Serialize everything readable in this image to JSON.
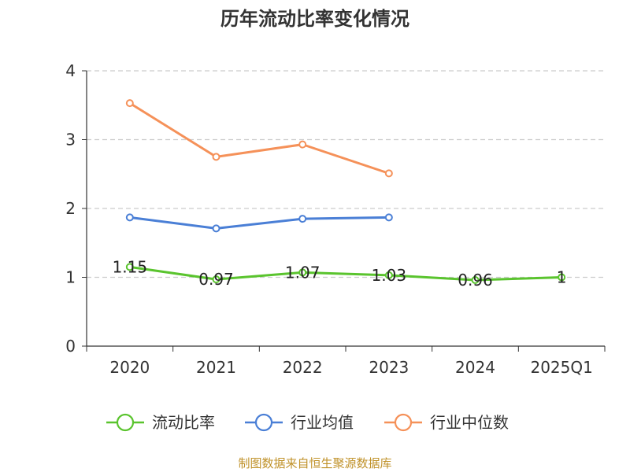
{
  "chart_data": {
    "type": "line",
    "title": "历年流动比率变化情况",
    "categories": [
      "2020",
      "2021",
      "2022",
      "2023",
      "2024",
      "2025Q1"
    ],
    "ylim": [
      0,
      4
    ],
    "yticks": [
      "0",
      "1",
      "2",
      "3",
      "4"
    ],
    "grid": true,
    "series": [
      {
        "name": "流动比率",
        "color": "#5ac42e",
        "values": [
          1.15,
          0.97,
          1.07,
          1.03,
          0.96,
          1
        ],
        "labels": [
          "1.15",
          "0.97",
          "1.07",
          "1.03",
          "0.96",
          "1"
        ]
      },
      {
        "name": "行业均值",
        "color": "#4a7fd6",
        "values": [
          1.87,
          1.71,
          1.85,
          1.87,
          null,
          null
        ]
      },
      {
        "name": "行业中位数",
        "color": "#f59159",
        "values": [
          3.53,
          2.75,
          2.93,
          2.51,
          null,
          null
        ]
      }
    ],
    "legend_position": "bottom"
  },
  "source": "制图数据来自恒生聚源数据库"
}
